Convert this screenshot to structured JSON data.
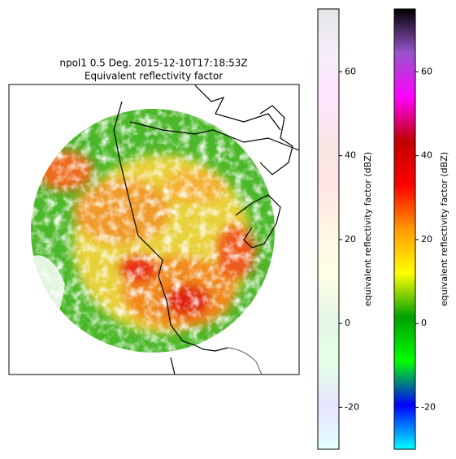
{
  "chart_data": {
    "type": "radar",
    "title": "npol1 0.5 Deg. 2015-12-10T17:18:53Z",
    "subtitle": "Equivalent reflectivity factor",
    "colorbars": [
      {
        "label": "equivalent reflectivity factor (dBZ)",
        "ylim": [
          -30,
          75
        ],
        "yticks": [
          -20,
          0,
          20,
          40,
          60
        ],
        "opacity": 0.1,
        "colors": [
          "#00ffff",
          "#0000ff",
          "#00ff00",
          "#00a000",
          "#ffff00",
          "#ff9900",
          "#ff0000",
          "#c00000",
          "#ff00ff",
          "#9955cc",
          "#000000"
        ]
      },
      {
        "label": "equivalent reflectivity factor (dBZ)",
        "ylim": [
          -30,
          75
        ],
        "yticks": [
          -20,
          0,
          20,
          40,
          60
        ],
        "opacity": 1,
        "colors": [
          "#00ffff",
          "#0000ff",
          "#00ff00",
          "#00a000",
          "#ffff00",
          "#ff9900",
          "#ff0000",
          "#c00000",
          "#ff00ff",
          "#9955cc",
          "#000000"
        ]
      }
    ]
  }
}
